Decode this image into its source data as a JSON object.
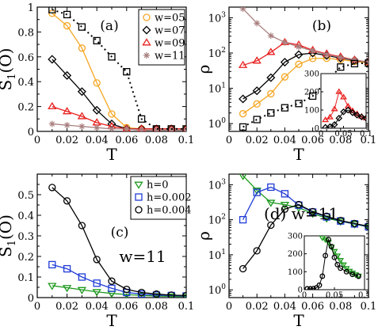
{
  "colors": {
    "w05": "#f5a623",
    "w07": "#000000",
    "w09": "#e8201e",
    "w11": "#aa8080",
    "h0": "#1e9a1e",
    "h0002": "#1f3bd6",
    "h0004": "#000000"
  },
  "chart_data": [
    {
      "id": "a",
      "panel_label": "(a)",
      "type": "line",
      "xlabel": "T",
      "ylabel": "S",
      "ylabel_sub": "1",
      "ylabel_suffix": "(O)",
      "xlim": [
        0,
        0.1
      ],
      "ylim": [
        0,
        1
      ],
      "yscale": "linear",
      "xticks": [
        "0",
        "0.02",
        "0.04",
        "0.06",
        "0.08",
        "0.1"
      ],
      "yticks": [
        "0",
        "0.2",
        "0.4",
        "0.6",
        "0.8",
        "1"
      ],
      "legend": "top-right",
      "series": [
        {
          "name": "w=05",
          "color": "#f5a623",
          "marker": "circle",
          "dash": "solid",
          "x": [
            0.01,
            0.02,
            0.03,
            0.04,
            0.05,
            0.06,
            0.07,
            0.08,
            0.09,
            0.1
          ],
          "y": [
            0.95,
            0.85,
            0.67,
            0.39,
            0.14,
            0.03,
            0.02,
            0.02,
            0.02,
            0.02
          ]
        },
        {
          "name": "w=07",
          "color": "#000000",
          "marker": "diamond",
          "dash": "solid",
          "x": [
            0.01,
            0.02,
            0.03,
            0.04,
            0.05,
            0.06,
            0.07,
            0.08,
            0.09,
            0.1
          ],
          "y": [
            0.58,
            0.45,
            0.32,
            0.17,
            0.06,
            0.02,
            0.02,
            0.02,
            0.02,
            0.02
          ]
        },
        {
          "name": "w=09",
          "color": "#e8201e",
          "marker": "triangle",
          "dash": "solid",
          "x": [
            0.01,
            0.02,
            0.03,
            0.04,
            0.05,
            0.06,
            0.07,
            0.08,
            0.09,
            0.1
          ],
          "y": [
            0.2,
            0.16,
            0.12,
            0.07,
            0.04,
            0.02,
            0.02,
            0.02,
            0.02,
            0.02
          ]
        },
        {
          "name": "w=11",
          "color": "#aa8080",
          "marker": "star",
          "dash": "solid",
          "x": [
            0.01,
            0.02,
            0.03,
            0.04,
            0.05,
            0.06,
            0.07,
            0.08,
            0.09,
            0.1
          ],
          "y": [
            0.06,
            0.05,
            0.04,
            0.03,
            0.02,
            0.02,
            0.01,
            0.01,
            0.01,
            0.01
          ]
        },
        {
          "name": "",
          "color": "#000000",
          "marker": "square",
          "dash": "dotted",
          "x": [
            0.01,
            0.02,
            0.03,
            0.04,
            0.05,
            0.06,
            0.07,
            0.08,
            0.09,
            0.1
          ],
          "y": [
            0.98,
            0.94,
            0.84,
            0.73,
            0.6,
            0.48,
            0.1,
            0.02,
            0.02,
            0.02
          ]
        }
      ]
    },
    {
      "id": "b",
      "panel_label": "(b)",
      "type": "line",
      "xlabel": "T",
      "ylabel": "ρ",
      "xlim": [
        0,
        0.1
      ],
      "ylim": [
        0.6,
        2000
      ],
      "yscale": "log",
      "xticks": [
        "0",
        "0.02",
        "0.04",
        "0.06",
        "0.08",
        "0.1"
      ],
      "yticks_log": [
        0,
        1,
        2,
        3
      ],
      "series": [
        {
          "name": "w=05",
          "color": "#f5a623",
          "marker": "circle",
          "dash": "solid",
          "x": [
            0.01,
            0.02,
            0.03,
            0.04,
            0.05,
            0.06,
            0.07,
            0.08,
            0.09,
            0.1
          ],
          "y": [
            1.9,
            3.6,
            7,
            21,
            48,
            70,
            71,
            65,
            58,
            52
          ]
        },
        {
          "name": "w=07",
          "color": "#000000",
          "marker": "diamond",
          "dash": "solid",
          "x": [
            0.01,
            0.02,
            0.03,
            0.04,
            0.05,
            0.06,
            0.07,
            0.08,
            0.09,
            0.1
          ],
          "y": [
            5,
            8.5,
            20,
            55,
            90,
            100,
            85,
            72,
            62,
            55
          ]
        },
        {
          "name": "w=09",
          "color": "#e8201e",
          "marker": "triangle",
          "dash": "solid",
          "x": [
            0.01,
            0.02,
            0.03,
            0.04,
            0.05,
            0.06,
            0.07,
            0.08,
            0.09,
            0.1
          ],
          "y": [
            45,
            60,
            105,
            200,
            170,
            120,
            95,
            78,
            64,
            55
          ]
        },
        {
          "name": "w=11",
          "color": "#aa8080",
          "marker": "star",
          "dash": "solid",
          "x": [
            0.01,
            0.02,
            0.03,
            0.04,
            0.05,
            0.06,
            0.07,
            0.08,
            0.09,
            0.1
          ],
          "y": [
            1800,
            700,
            310,
            200,
            150,
            115,
            90,
            75,
            64,
            55
          ]
        },
        {
          "name": "",
          "color": "#000000",
          "marker": "square",
          "dash": "dotted",
          "x": [
            0.01,
            0.02,
            0.03,
            0.04,
            0.05,
            0.06,
            0.07,
            0.08,
            0.09,
            0.1
          ],
          "y": [
            0.8,
            1.3,
            2,
            2.8,
            3.7,
            6,
            16,
            40,
            50,
            52
          ]
        }
      ],
      "inset": {
        "xlim": [
          0,
          0.1
        ],
        "ylim": [
          0,
          300
        ],
        "xticks": [
          "0",
          "0.05",
          "0.1"
        ],
        "yticks": [
          "0",
          "100",
          "200",
          "300"
        ],
        "series": [
          {
            "color": "#e8201e",
            "marker": "triangle",
            "x": [
              0.01,
              0.02,
              0.03,
              0.04,
              0.05,
              0.06,
              0.07,
              0.08,
              0.09,
              0.1
            ],
            "y": [
              45,
              60,
              105,
              200,
              170,
              120,
              95,
              78,
              64,
              55
            ]
          },
          {
            "color": "#000000",
            "marker": "diamond",
            "x": [
              0.01,
              0.02,
              0.03,
              0.04,
              0.05,
              0.06,
              0.07,
              0.08,
              0.09,
              0.1
            ],
            "y": [
              5,
              8.5,
              20,
              55,
              90,
              100,
              85,
              72,
              62,
              55
            ]
          }
        ]
      }
    },
    {
      "id": "c",
      "panel_label": "(c)",
      "annotation": "w=11",
      "type": "line",
      "xlabel": "T",
      "ylabel": "S",
      "ylabel_sub": "1",
      "ylabel_suffix": "(O)",
      "xlim": [
        0,
        0.1
      ],
      "ylim": [
        0,
        0.6
      ],
      "yscale": "linear",
      "xticks": [
        "0",
        "0.02",
        "0.04",
        "0.06",
        "0.08",
        "0.1"
      ],
      "yticks": [
        "0",
        "0.1",
        "0.2",
        "0.3",
        "0.4",
        "0.5"
      ],
      "legend": "top-right",
      "series": [
        {
          "name": "h=0",
          "color": "#1e9a1e",
          "marker": "tridown",
          "dash": "solid",
          "x": [
            0.01,
            0.02,
            0.03,
            0.04,
            0.05,
            0.06,
            0.07,
            0.08,
            0.09,
            0.1
          ],
          "y": [
            0.058,
            0.048,
            0.038,
            0.028,
            0.02,
            0.015,
            0.01,
            0.008,
            0.006,
            0.005
          ]
        },
        {
          "name": "h=0.002",
          "color": "#1f3bd6",
          "marker": "square",
          "dash": "solid",
          "x": [
            0.01,
            0.02,
            0.03,
            0.04,
            0.05,
            0.06,
            0.07,
            0.08,
            0.09,
            0.1
          ],
          "y": [
            0.16,
            0.14,
            0.1,
            0.07,
            0.045,
            0.025,
            0.017,
            0.012,
            0.01,
            0.008
          ]
        },
        {
          "name": "h=0.004",
          "color": "#000000",
          "marker": "circle",
          "dash": "solid",
          "x": [
            0.01,
            0.02,
            0.03,
            0.04,
            0.05,
            0.06,
            0.07,
            0.08,
            0.09,
            0.1
          ],
          "y": [
            0.535,
            0.47,
            0.35,
            0.185,
            0.08,
            0.04,
            0.025,
            0.017,
            0.012,
            0.01
          ]
        }
      ]
    },
    {
      "id": "d",
      "panel_label": "(d) w=11",
      "type": "line",
      "xlabel": "T",
      "ylabel": "ρ",
      "xlim": [
        0,
        0.1
      ],
      "ylim": [
        0.6,
        2000
      ],
      "yscale": "log",
      "xticks": [
        "0",
        "0.02",
        "0.04",
        "0.06",
        "0.08",
        "0.1"
      ],
      "yticks_log": [
        0,
        1,
        2,
        3
      ],
      "series": [
        {
          "name": "h=0",
          "color": "#1e9a1e",
          "marker": "tridown",
          "dash": "solid",
          "x": [
            0.01,
            0.02,
            0.03,
            0.04,
            0.05,
            0.06,
            0.07,
            0.08,
            0.09,
            0.1
          ],
          "y": [
            1800,
            690,
            310,
            270,
            220,
            150,
            110,
            90,
            75,
            62
          ]
        },
        {
          "name": "h=0.002",
          "color": "#1f3bd6",
          "marker": "square",
          "dash": "solid",
          "x": [
            0.01,
            0.02,
            0.03,
            0.04,
            0.05,
            0.06,
            0.07,
            0.08,
            0.09,
            0.1
          ],
          "y": [
            100,
            600,
            850,
            550,
            260,
            165,
            120,
            92,
            76,
            63
          ]
        },
        {
          "name": "h=0.004",
          "color": "#000000",
          "marker": "circle",
          "dash": "solid",
          "x": [
            0.01,
            0.02,
            0.03,
            0.04,
            0.05,
            0.06,
            0.07,
            0.08,
            0.09,
            0.1
          ],
          "y": [
            4,
            13,
            70,
            200,
            270,
            170,
            125,
            95,
            78,
            65
          ]
        }
      ],
      "inset": {
        "xlim": [
          0,
          0.1
        ],
        "ylim": [
          0,
          300
        ],
        "xticks": [
          "0",
          "0.05",
          "0.1"
        ],
        "yticks": [
          "0",
          "100",
          "200",
          "300"
        ],
        "series": [
          {
            "color": "#1e9a1e",
            "marker": "tridown",
            "x": [
              0.03,
              0.035,
              0.04,
              0.045,
              0.05,
              0.055,
              0.06,
              0.065,
              0.07,
              0.075,
              0.08,
              0.085,
              0.09
            ],
            "y": [
              290,
              280,
              265,
              240,
              215,
              190,
              165,
              140,
              120,
              105,
              95,
              85,
              78
            ]
          },
          {
            "color": "#000000",
            "marker": "circle",
            "x": [
              0.005,
              0.01,
              0.015,
              0.02,
              0.025,
              0.03,
              0.035,
              0.04,
              0.045,
              0.05,
              0.055,
              0.06,
              0.07,
              0.08,
              0.09
            ],
            "y": [
              5,
              5,
              6,
              10,
              25,
              75,
              190,
              280,
              240,
              180,
              140,
              120,
              100,
              85,
              75
            ]
          }
        ]
      }
    }
  ]
}
